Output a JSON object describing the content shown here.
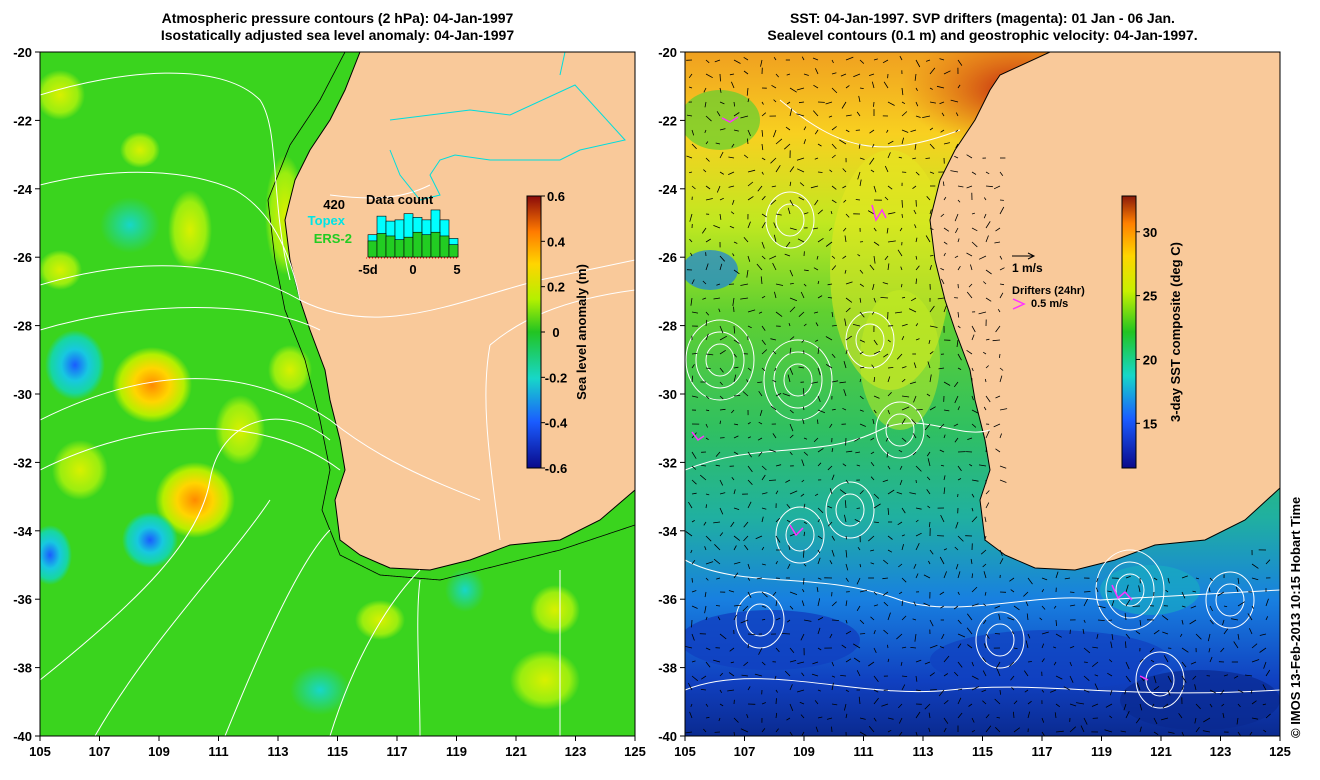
{
  "left_panel": {
    "title_line1": "Atmospheric pressure contours (2 hPa): 04-Jan-1997",
    "title_line2": "Isostatically adjusted sea level anomaly: 04-Jan-1997",
    "y_ticks": [
      "-20",
      "-22",
      "-24",
      "-26",
      "-28",
      "-30",
      "-32",
      "-34",
      "-36",
      "-38",
      "-40"
    ],
    "x_ticks": [
      "105",
      "107",
      "109",
      "111",
      "113",
      "115",
      "117",
      "119",
      "121",
      "123",
      "125"
    ],
    "colorbar": {
      "label": "Sea level anomaly (m)",
      "ticks": [
        "0.6",
        "0.4",
        "0.2",
        "0",
        "-0.2",
        "-0.4",
        "-0.6"
      ]
    },
    "data_count": {
      "max_label": "420",
      "title": "Data count",
      "legend_topex": "Topex",
      "legend_ers2": "ERS-2",
      "x_labels": [
        "-5d",
        "0",
        "5"
      ],
      "topex_values": [
        180,
        330,
        290,
        300,
        350,
        320,
        300,
        380,
        300,
        150
      ],
      "ers2_values": [
        130,
        190,
        170,
        140,
        160,
        200,
        180,
        200,
        170,
        100
      ]
    }
  },
  "right_panel": {
    "title_line1": "SST: 04-Jan-1997. SVP drifters (magenta): 01 Jan - 06 Jan.",
    "title_line2": "Sealevel contours (0.1 m) and geostrophic velocity: 04-Jan-1997.",
    "y_ticks": [
      "-20",
      "-22",
      "-24",
      "-26",
      "-28",
      "-30",
      "-32",
      "-34",
      "-36",
      "-38",
      "-40"
    ],
    "x_ticks": [
      "105",
      "107",
      "109",
      "111",
      "113",
      "115",
      "117",
      "119",
      "121",
      "123",
      "125"
    ],
    "colorbar": {
      "label": "3-day SST composite (deg C)",
      "ticks": [
        "30",
        "25",
        "20",
        "15"
      ]
    },
    "velocity_legend": "1 m/s",
    "drifters_title": "Drifters (24hr)",
    "drifters_speed": "0.5 m/s"
  },
  "footer": {
    "stamp": "© IMOS 13-Feb-2013 10:15 Hobart Time"
  },
  "colors": {
    "land": "#f9c99a",
    "ocean_mid": "#33dd33",
    "drifter": "#ff33ff",
    "boundary": "#00dddd",
    "topex": "#00ffff",
    "ers2": "#22cc22"
  }
}
